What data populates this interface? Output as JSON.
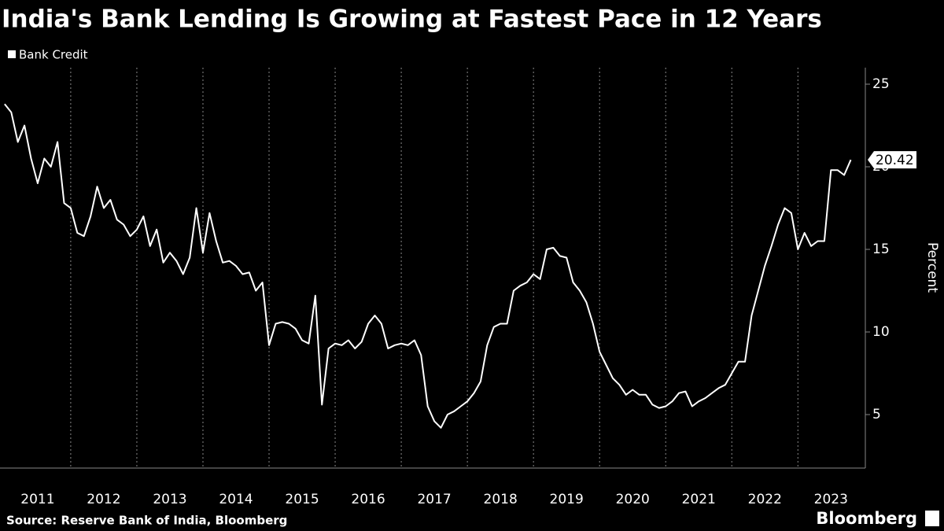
{
  "chart_data": {
    "type": "line",
    "title": "India's Bank Lending Is Growing at Fastest Pace in 12 Years",
    "ylabel": "Percent",
    "source": "Source: Reserve Bank of India, Bloomberg",
    "brand": "Bloomberg",
    "x": [
      2011.0,
      2011.1,
      2011.2,
      2011.3,
      2011.4,
      2011.5,
      2011.6,
      2011.7,
      2011.8,
      2011.9,
      2012.0,
      2012.1,
      2012.2,
      2012.3,
      2012.4,
      2012.5,
      2012.6,
      2012.7,
      2012.8,
      2012.9,
      2013.0,
      2013.1,
      2013.2,
      2013.3,
      2013.4,
      2013.5,
      2013.6,
      2013.7,
      2013.8,
      2013.9,
      2014.0,
      2014.1,
      2014.2,
      2014.3,
      2014.4,
      2014.5,
      2014.6,
      2014.7,
      2014.8,
      2014.9,
      2015.0,
      2015.1,
      2015.2,
      2015.3,
      2015.4,
      2015.5,
      2015.6,
      2015.7,
      2015.8,
      2015.9,
      2016.0,
      2016.1,
      2016.2,
      2016.3,
      2016.4,
      2016.5,
      2016.6,
      2016.7,
      2016.8,
      2016.9,
      2017.0,
      2017.1,
      2017.2,
      2017.3,
      2017.4,
      2017.5,
      2017.6,
      2017.7,
      2017.8,
      2017.9,
      2018.0,
      2018.1,
      2018.2,
      2018.3,
      2018.4,
      2018.5,
      2018.6,
      2018.7,
      2018.8,
      2018.9,
      2019.0,
      2019.1,
      2019.2,
      2019.3,
      2019.4,
      2019.5,
      2019.6,
      2019.7,
      2019.8,
      2019.9,
      2020.0,
      2020.1,
      2020.2,
      2020.3,
      2020.4,
      2020.5,
      2020.6,
      2020.7,
      2020.8,
      2020.9,
      2021.0,
      2021.1,
      2021.2,
      2021.3,
      2021.4,
      2021.5,
      2021.6,
      2021.7,
      2021.8,
      2021.9,
      2022.0,
      2022.1,
      2022.2,
      2022.3,
      2022.4,
      2022.5,
      2022.6,
      2022.7,
      2022.8,
      2022.9,
      2023.0,
      2023.1,
      2023.2,
      2023.3,
      2023.4,
      2023.5,
      2023.6,
      2023.7,
      2023.8
    ],
    "series": [
      {
        "name": "Bank Credit",
        "color": "#ffffff",
        "values": [
          23.8,
          23.3,
          21.5,
          22.5,
          20.5,
          19,
          20.5,
          20,
          21.5,
          17.8,
          17.5,
          16,
          15.8,
          17,
          18.8,
          17.5,
          18,
          16.8,
          16.5,
          15.8,
          16.2,
          17,
          15.2,
          16.2,
          14.2,
          14.8,
          14.3,
          13.5,
          14.5,
          17.5,
          14.8,
          17.2,
          15.5,
          14.2,
          14.3,
          14,
          13.5,
          13.6,
          12.5,
          13,
          9.2,
          10.5,
          10.6,
          10.5,
          10.2,
          9.5,
          9.3,
          12.2,
          5.6,
          9,
          9.3,
          9.2,
          9.5,
          9,
          9.4,
          10.5,
          11,
          10.5,
          9,
          9.2,
          9.3,
          9.2,
          9.5,
          8.6,
          5.5,
          4.6,
          4.2,
          5,
          5.2,
          5.5,
          5.8,
          6.3,
          7,
          9.2,
          10.3,
          10.5,
          10.5,
          12.5,
          12.8,
          13,
          13.5,
          13.2,
          15,
          15.1,
          14.6,
          14.5,
          13,
          12.5,
          11.8,
          10.5,
          8.8,
          8,
          7.2,
          6.8,
          6.2,
          6.5,
          6.2,
          6.2,
          5.6,
          5.4,
          5.5,
          5.8,
          6.3,
          6.4,
          5.5,
          5.8,
          6,
          6.3,
          6.6,
          6.8,
          7.5,
          8.2,
          8.2,
          11,
          12.5,
          14,
          15.2,
          16.5,
          17.5,
          17.2,
          15,
          16,
          15.2,
          15.5,
          15.5,
          19.8,
          19.8,
          19.5,
          20.42
        ]
      }
    ],
    "xlim": [
      2010.93,
      2024.02
    ],
    "xticks": [
      {
        "value": 2011,
        "label": "2011"
      },
      {
        "value": 2012,
        "label": "2012"
      },
      {
        "value": 2013,
        "label": "2013"
      },
      {
        "value": 2014,
        "label": "2014"
      },
      {
        "value": 2015,
        "label": "2015"
      },
      {
        "value": 2016,
        "label": "2016"
      },
      {
        "value": 2017,
        "label": "2017"
      },
      {
        "value": 2018,
        "label": "2018"
      },
      {
        "value": 2019,
        "label": "2019"
      },
      {
        "value": 2020,
        "label": "2020"
      },
      {
        "value": 2021,
        "label": "2021"
      },
      {
        "value": 2022,
        "label": "2022"
      },
      {
        "value": 2023,
        "label": "2023"
      }
    ],
    "ylim": [
      2,
      26
    ],
    "yticks": [
      5,
      10,
      15,
      20,
      25
    ],
    "last_value_label": true
  }
}
